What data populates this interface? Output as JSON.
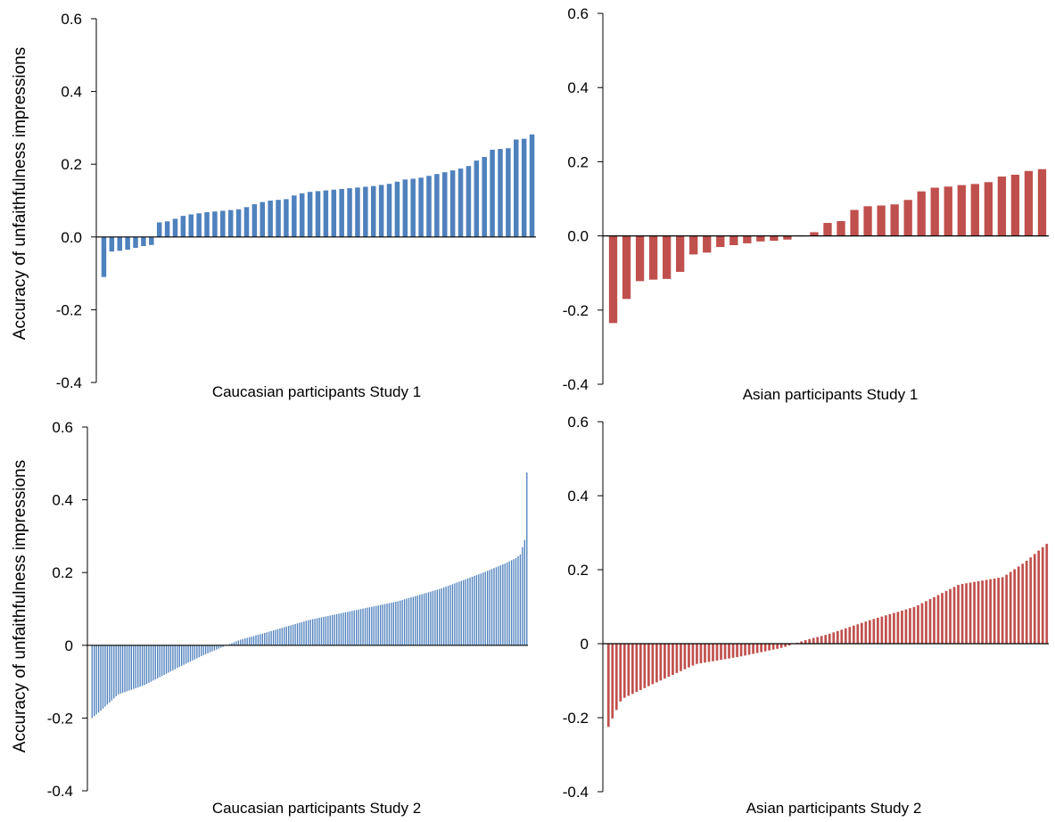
{
  "figure": {
    "ylabel": "Accuracy of unfaithfulness impressions",
    "colors": {
      "caucasian": "#4f81bd",
      "asian": "#c0504d",
      "axis": "#000000"
    }
  },
  "chart_data": [
    {
      "type": "bar",
      "title": "",
      "xlabel": "Caucasian participants Study 1",
      "ylabel": "Accuracy of unfaithfulness impressions",
      "ylim": [
        -0.4,
        0.6
      ],
      "yticks": [
        "-0.4",
        "-0.2",
        "0.0",
        "0.2",
        "0.4",
        "0.6"
      ],
      "color": "#4f81bd",
      "values": [
        -0.11,
        -0.04,
        -0.038,
        -0.035,
        -0.03,
        -0.025,
        -0.022,
        0.04,
        0.043,
        0.05,
        0.058,
        0.062,
        0.065,
        0.068,
        0.07,
        0.072,
        0.074,
        0.076,
        0.082,
        0.09,
        0.096,
        0.1,
        0.102,
        0.104,
        0.114,
        0.12,
        0.124,
        0.126,
        0.128,
        0.13,
        0.132,
        0.134,
        0.136,
        0.138,
        0.14,
        0.143,
        0.146,
        0.152,
        0.158,
        0.16,
        0.163,
        0.168,
        0.173,
        0.178,
        0.183,
        0.188,
        0.195,
        0.21,
        0.22,
        0.24,
        0.242,
        0.244,
        0.268,
        0.27,
        0.282
      ]
    },
    {
      "type": "bar",
      "title": "",
      "xlabel": "Asian participants Study 1",
      "ylabel": "",
      "ylim": [
        -0.4,
        0.6
      ],
      "yticks": [
        "-0.4",
        "-0.2",
        "0.0",
        "0.2",
        "0.4",
        "0.6"
      ],
      "color": "#c0504d",
      "values": [
        -0.235,
        -0.17,
        -0.122,
        -0.118,
        -0.116,
        -0.097,
        -0.05,
        -0.045,
        -0.03,
        -0.025,
        -0.02,
        -0.015,
        -0.013,
        -0.01,
        0.0,
        0.01,
        0.035,
        0.04,
        0.07,
        0.08,
        0.082,
        0.085,
        0.097,
        0.12,
        0.13,
        0.133,
        0.137,
        0.14,
        0.145,
        0.16,
        0.165,
        0.175,
        0.18
      ]
    },
    {
      "type": "bar",
      "title": "",
      "xlabel": "Caucasian participants Study 2",
      "ylabel": "Accuracy of unfaithfulness impressions",
      "ylim": [
        -0.4,
        0.6
      ],
      "yticks": [
        "-0.4",
        "-0.2",
        "0",
        "0.2",
        "0.4",
        "0.6"
      ],
      "color": "#4f81bd",
      "n_bars": 200,
      "profile": {
        "percentiles": [
          0,
          0.02,
          0.06,
          0.12,
          0.2,
          0.26,
          0.3,
          0.34,
          0.4,
          0.5,
          0.6,
          0.7,
          0.8,
          0.9,
          0.95,
          0.975,
          0.985,
          0.995,
          1.0
        ],
        "values": [
          -0.2,
          -0.18,
          -0.135,
          -0.11,
          -0.06,
          -0.025,
          -0.005,
          0.015,
          0.035,
          0.07,
          0.095,
          0.12,
          0.155,
          0.2,
          0.225,
          0.24,
          0.25,
          0.29,
          0.475
        ]
      }
    },
    {
      "type": "bar",
      "title": "",
      "xlabel": "Asian participants Study 2",
      "ylabel": "",
      "ylim": [
        -0.4,
        0.6
      ],
      "yticks": [
        "-0.4",
        "-0.2",
        "0",
        "0.2",
        "0.4",
        "0.6"
      ],
      "color": "#c0504d",
      "n_bars": 110,
      "profile": {
        "percentiles": [
          0,
          0.03,
          0.1,
          0.2,
          0.3,
          0.4,
          0.45,
          0.5,
          0.6,
          0.7,
          0.75,
          0.8,
          0.9,
          0.95,
          1.0
        ],
        "values": [
          -0.225,
          -0.15,
          -0.11,
          -0.055,
          -0.035,
          -0.01,
          0.01,
          0.025,
          0.065,
          0.1,
          0.13,
          0.16,
          0.18,
          0.22,
          0.27
        ]
      }
    }
  ]
}
